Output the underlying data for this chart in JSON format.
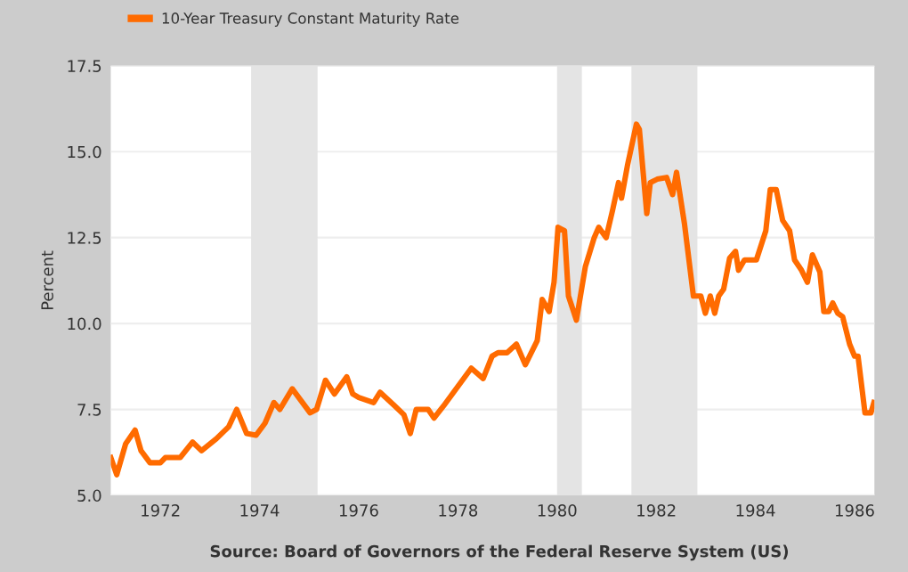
{
  "chart_data": {
    "type": "line",
    "ylabel": "Percent",
    "x": [
      1971.0,
      1971.12,
      1971.3,
      1971.49,
      1971.61,
      1971.79,
      1972.0,
      1972.1,
      1972.4,
      1972.65,
      1972.83,
      1973.13,
      1973.38,
      1973.54,
      1973.74,
      1973.93,
      1974.11,
      1974.29,
      1974.41,
      1974.66,
      1974.84,
      1975.02,
      1975.15,
      1975.33,
      1975.51,
      1975.76,
      1975.88,
      1976.0,
      1976.3,
      1976.43,
      1976.73,
      1976.91,
      1977.04,
      1977.16,
      1977.4,
      1977.52,
      1977.71,
      1978.27,
      1978.51,
      1978.69,
      1978.81,
      1978.99,
      1979.18,
      1979.36,
      1979.6,
      1979.7,
      1979.84,
      1979.94,
      1980.02,
      1980.15,
      1980.23,
      1980.39,
      1980.57,
      1980.75,
      1980.84,
      1980.99,
      1981.12,
      1981.24,
      1981.3,
      1981.42,
      1981.6,
      1981.66,
      1981.81,
      1981.88,
      1982.02,
      1982.21,
      1982.33,
      1982.41,
      1982.57,
      1982.75,
      1982.9,
      1982.99,
      1983.09,
      1983.18,
      1983.26,
      1983.36,
      1983.48,
      1983.6,
      1983.66,
      1983.78,
      1984.02,
      1984.21,
      1984.3,
      1984.42,
      1984.55,
      1984.69,
      1984.79,
      1984.93,
      1985.05,
      1985.15,
      1985.3,
      1985.38,
      1985.48,
      1985.56,
      1985.66,
      1985.76,
      1985.9,
      1986.0,
      1986.07,
      1986.21,
      1986.33,
      1986.39
    ],
    "series": [
      {
        "name": "10-Year Treasury Constant Maturity Rate",
        "color": "#ff6b00",
        "values": [
          6.1,
          5.6,
          6.5,
          6.9,
          6.3,
          5.95,
          5.95,
          6.1,
          6.1,
          6.55,
          6.3,
          6.65,
          7.0,
          7.5,
          6.8,
          6.75,
          7.1,
          7.7,
          7.5,
          8.1,
          7.75,
          7.4,
          7.5,
          8.35,
          7.95,
          8.45,
          7.95,
          7.85,
          7.7,
          8.0,
          7.6,
          7.35,
          6.8,
          7.5,
          7.5,
          7.25,
          7.6,
          8.7,
          8.4,
          9.05,
          9.15,
          9.15,
          9.4,
          8.8,
          9.5,
          10.7,
          10.35,
          11.2,
          12.8,
          12.7,
          10.8,
          10.1,
          11.65,
          12.5,
          12.8,
          12.5,
          13.3,
          14.1,
          13.65,
          14.6,
          15.8,
          15.65,
          13.2,
          14.1,
          14.2,
          14.25,
          13.75,
          14.4,
          12.9,
          10.8,
          10.8,
          10.3,
          10.8,
          10.3,
          10.8,
          11.0,
          11.9,
          12.1,
          11.55,
          11.85,
          11.85,
          12.7,
          13.9,
          13.9,
          13.0,
          12.7,
          11.85,
          11.55,
          11.2,
          12.0,
          11.5,
          10.35,
          10.35,
          10.6,
          10.3,
          10.2,
          9.4,
          9.05,
          9.05,
          7.4,
          7.4,
          7.7
        ]
      }
    ],
    "xlim": [
      1971.0,
      1986.4
    ],
    "xticks": [
      1972,
      1974,
      1976,
      1978,
      1980,
      1982,
      1984,
      1986
    ],
    "ylim": [
      5.0,
      17.5
    ],
    "yticks": [
      {
        "value": 5.0,
        "label": "5.0"
      },
      {
        "value": 7.5,
        "label": "7.5"
      },
      {
        "value": 10.0,
        "label": "10.0"
      },
      {
        "value": 12.5,
        "label": "12.5"
      },
      {
        "value": 15.0,
        "label": "15.0"
      },
      {
        "value": 17.5,
        "label": "17.5"
      }
    ],
    "bands": [
      {
        "axis": "x",
        "from": 1973.83,
        "to": 1975.17,
        "label": null,
        "color": "#e4e4e4"
      },
      {
        "axis": "x",
        "from": 1980.0,
        "to": 1980.5,
        "label": null,
        "color": "#e4e4e4"
      },
      {
        "axis": "x",
        "from": 1981.5,
        "to": 1982.83,
        "label": null,
        "color": "#e4e4e4"
      }
    ],
    "grid": "y",
    "legend": "top left",
    "line_style": "solid",
    "marker": "none",
    "annotations": [
      "Source: Board of Governors of the Federal Reserve System (US)"
    ]
  }
}
